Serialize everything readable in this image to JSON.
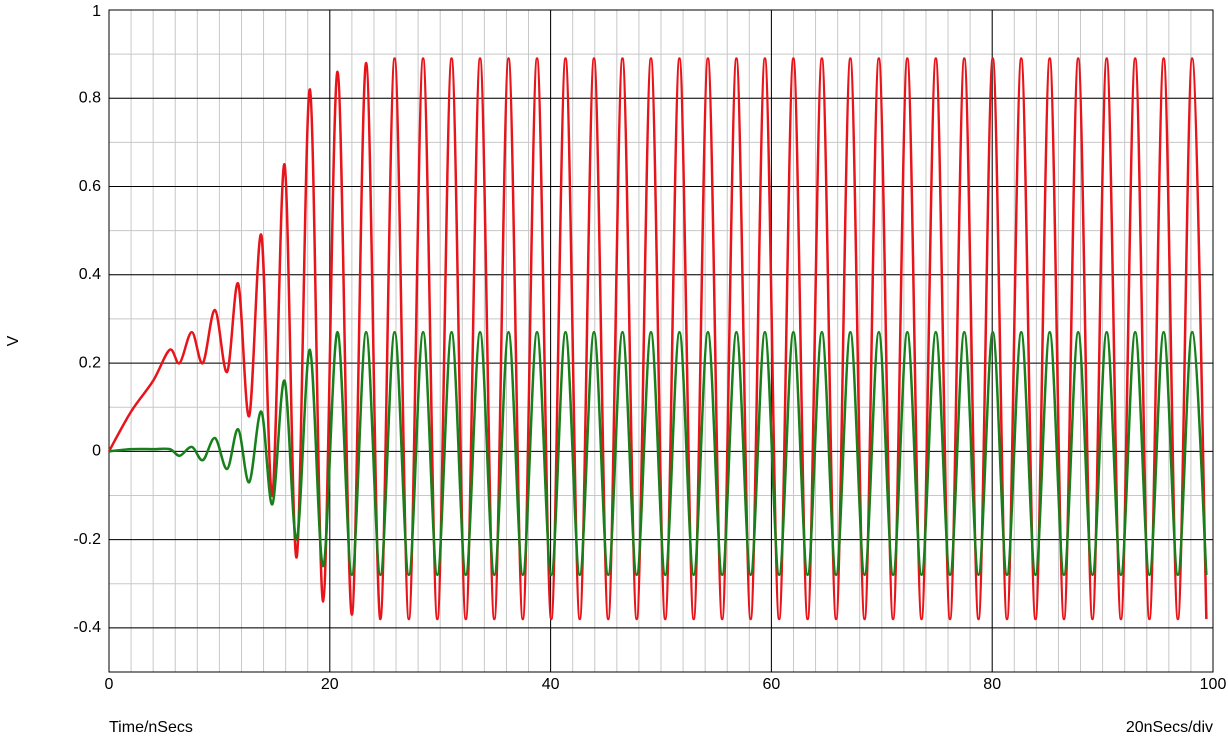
{
  "chart_data": {
    "type": "line",
    "xlabel": "Time/nSecs",
    "ylabel": "V",
    "annotation": "20nSecs/div",
    "xlim": [
      0,
      100
    ],
    "xticks": [
      0,
      20,
      40,
      60,
      80,
      100
    ],
    "ylim": [
      -0.5,
      1
    ],
    "yticks": [
      -0.4,
      -0.2,
      0,
      0.2,
      0.4,
      0.6,
      0.8,
      1
    ],
    "grid": true,
    "minor_divisions": {
      "x": 10,
      "y": 2
    },
    "x": [
      0,
      2,
      4,
      5.5,
      6.4,
      7.5,
      8.5,
      9.6,
      10.7,
      11.7,
      12.7,
      13.8,
      14.8,
      15.9,
      17.0,
      18.2,
      19.4,
      20.7,
      22.0,
      23.29,
      24.58,
      25.87,
      27.16,
      28.45,
      29.74,
      31.03,
      32.32,
      33.61,
      34.9,
      36.19,
      37.48,
      38.77,
      40.06,
      41.35,
      42.64,
      43.93,
      45.22,
      46.51,
      47.8,
      49.09,
      50.38,
      51.67,
      52.96,
      54.25,
      55.54,
      56.83,
      58.12,
      59.41,
      60.7,
      61.99,
      63.28,
      64.57,
      65.86,
      67.15,
      68.44,
      69.73,
      71.02,
      72.31,
      73.6,
      74.89,
      76.18,
      77.47,
      78.76,
      80.05,
      81.34,
      82.63,
      83.92,
      85.21,
      86.5,
      87.79,
      89.08,
      90.37,
      91.66,
      92.95,
      94.24,
      95.53,
      96.82,
      98.11,
      99.4
    ],
    "series": [
      {
        "color": "#e8141a",
        "values": [
          0,
          0.09,
          0.16,
          0.23,
          0.2,
          0.27,
          0.2,
          0.32,
          0.18,
          0.38,
          0.08,
          0.49,
          -0.1,
          0.65,
          -0.24,
          0.82,
          -0.34,
          0.86,
          -0.37,
          0.88,
          -0.38,
          0.89,
          -0.38,
          0.89,
          -0.38,
          0.89,
          -0.38,
          0.89,
          -0.38,
          0.89,
          -0.38,
          0.89,
          -0.38,
          0.89,
          -0.38,
          0.89,
          -0.38,
          0.89,
          -0.38,
          0.89,
          -0.38,
          0.89,
          -0.38,
          0.89,
          -0.38,
          0.89,
          -0.38,
          0.89,
          -0.38,
          0.89,
          -0.38,
          0.89,
          -0.38,
          0.89,
          -0.38,
          0.89,
          -0.38,
          0.89,
          -0.38,
          0.89,
          -0.38,
          0.89,
          -0.38,
          0.89,
          -0.38,
          0.89,
          -0.38,
          0.89,
          -0.38,
          0.89,
          -0.38,
          0.89,
          -0.38,
          0.89,
          -0.38,
          0.89,
          -0.38,
          0.89,
          -0.38
        ]
      },
      {
        "color": "#17801a",
        "values": [
          0,
          0.005,
          0.005,
          0.005,
          -0.01,
          0.01,
          -0.02,
          0.03,
          -0.04,
          0.05,
          -0.07,
          0.09,
          -0.12,
          0.16,
          -0.2,
          0.23,
          -0.26,
          0.27,
          -0.28,
          0.27,
          -0.28,
          0.27,
          -0.28,
          0.27,
          -0.28,
          0.27,
          -0.28,
          0.27,
          -0.28,
          0.27,
          -0.28,
          0.27,
          -0.28,
          0.27,
          -0.28,
          0.27,
          -0.28,
          0.27,
          -0.28,
          0.27,
          -0.28,
          0.27,
          -0.28,
          0.27,
          -0.28,
          0.27,
          -0.28,
          0.27,
          -0.28,
          0.27,
          -0.28,
          0.27,
          -0.28,
          0.27,
          -0.28,
          0.27,
          -0.28,
          0.27,
          -0.28,
          0.27,
          -0.28,
          0.27,
          -0.28,
          0.27,
          -0.28,
          0.27,
          -0.28,
          0.27,
          -0.28,
          0.27,
          -0.28,
          0.27,
          -0.28,
          0.27,
          -0.28,
          0.27,
          -0.28,
          0.27,
          -0.28
        ]
      }
    ]
  }
}
